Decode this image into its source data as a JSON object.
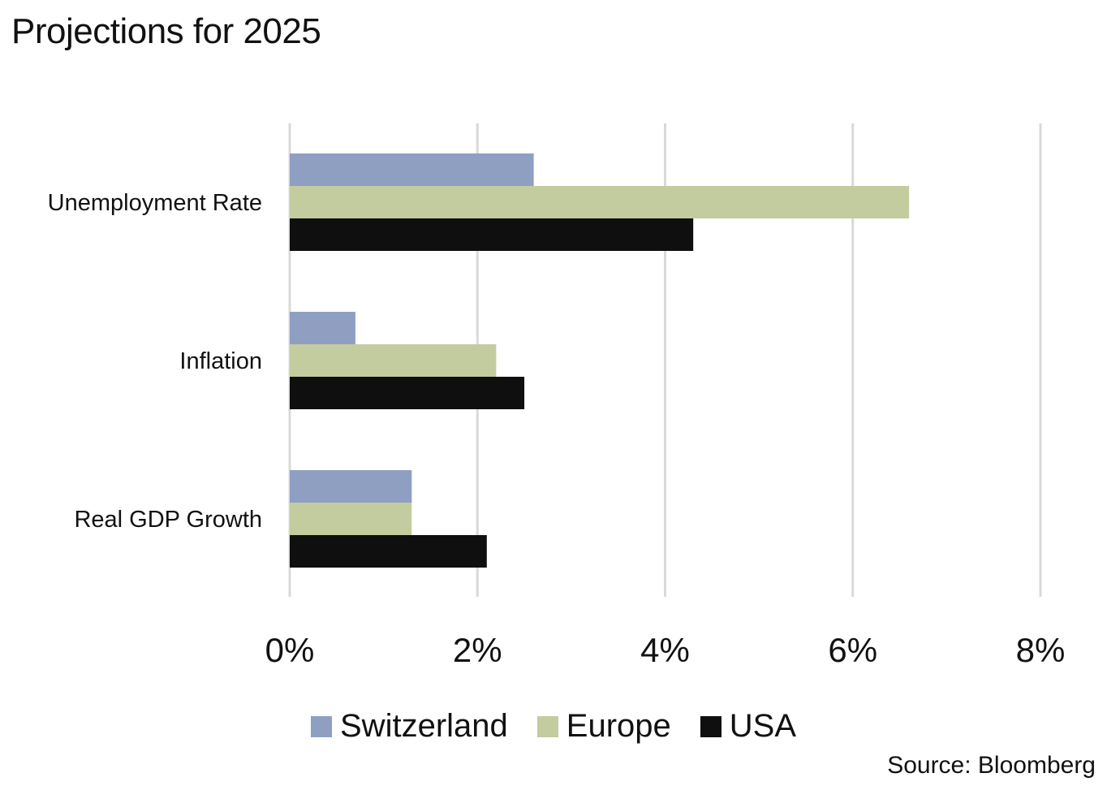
{
  "chart_data": {
    "type": "bar",
    "orientation": "horizontal",
    "title": "Projections for 2025",
    "categories": [
      "Unemployment Rate",
      "Inflation",
      "Real GDP Growth"
    ],
    "series": [
      {
        "name": "Switzerland",
        "color": "#8e9fc2",
        "values": [
          2.6,
          0.7,
          1.3
        ]
      },
      {
        "name": "Europe",
        "color": "#c3cc9e",
        "values": [
          6.6,
          2.2,
          1.3
        ]
      },
      {
        "name": "USA",
        "color": "#0f0f0f",
        "values": [
          4.3,
          2.5,
          2.1
        ]
      }
    ],
    "xlim": [
      0,
      8
    ],
    "xticks": [
      0,
      2,
      4,
      6,
      8
    ],
    "xtick_labels": [
      "0%",
      "2%",
      "4%",
      "6%",
      "8%"
    ],
    "xlabel": "",
    "ylabel": "",
    "grid": true,
    "legend_position": "bottom-center",
    "source": "Source: Bloomberg"
  }
}
